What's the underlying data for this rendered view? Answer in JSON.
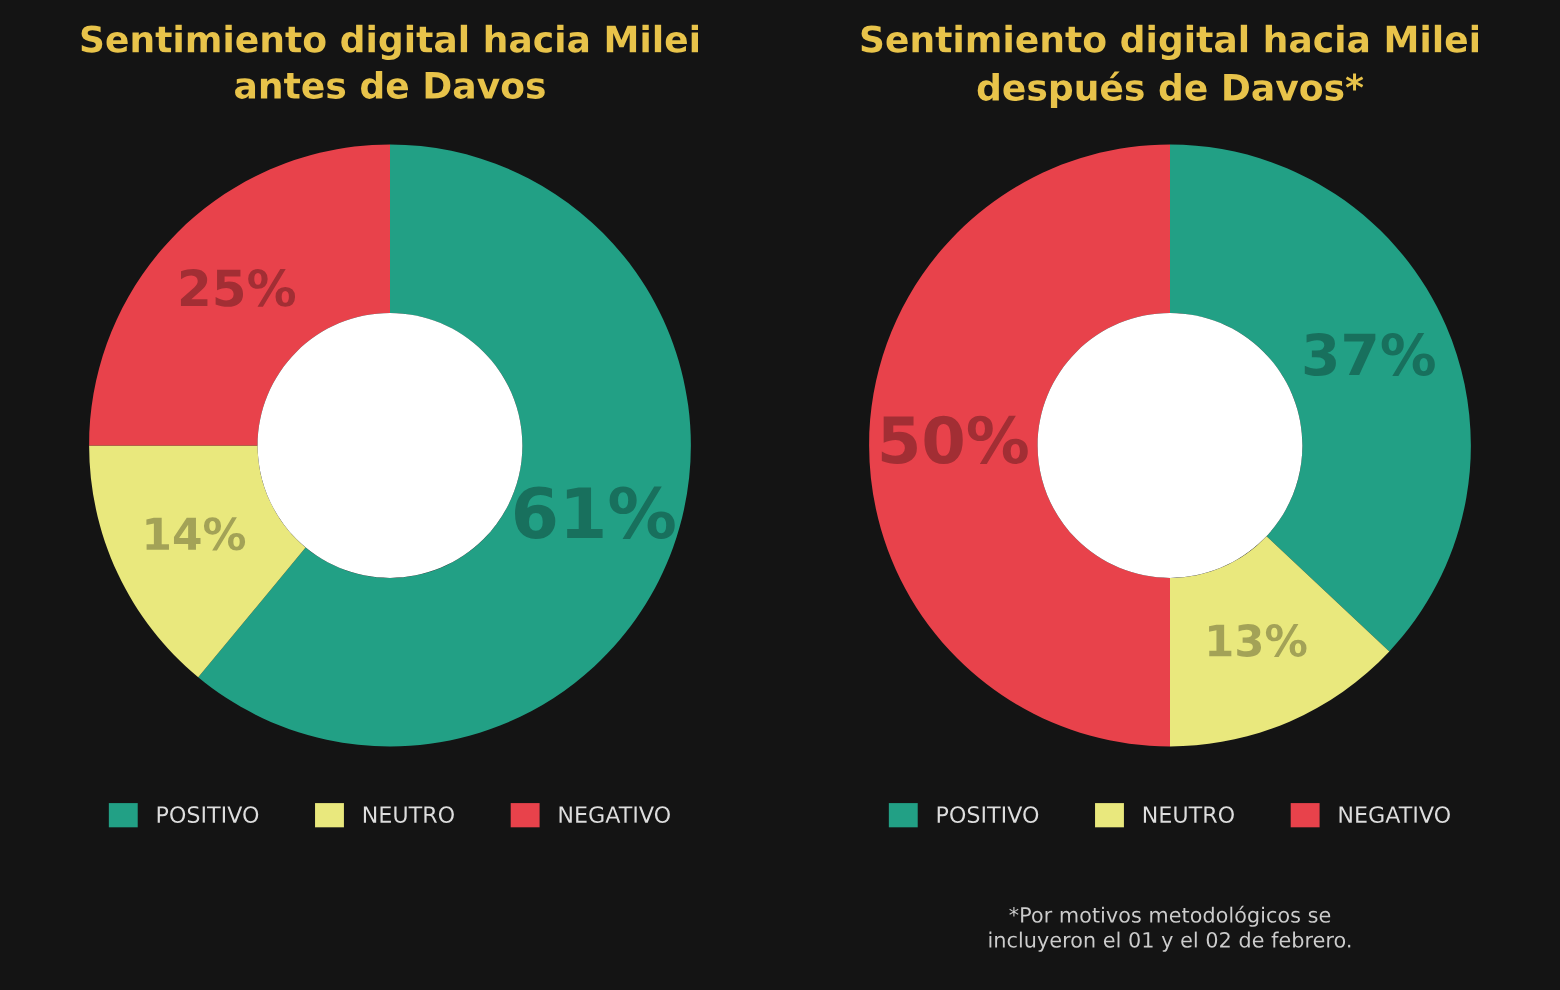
{
  "chart_data": [
    {
      "type": "donut",
      "title": "Sentimiento digital hacia Milei\nantes de Davos",
      "categories": [
        "POSITIVO",
        "NEUTRO",
        "NEGATIVO"
      ],
      "values": [
        61,
        14,
        25
      ],
      "value_labels": [
        "61%",
        "14%",
        "25%"
      ],
      "colors": [
        "#22a085",
        "#e9e87d",
        "#e8424b"
      ],
      "legend": "bottom"
    },
    {
      "type": "donut",
      "title": "Sentimiento digital hacia Milei\ndespués de Davos*",
      "categories": [
        "POSITIVO",
        "NEUTRO",
        "NEGATIVO"
      ],
      "values": [
        37,
        13,
        50
      ],
      "value_labels": [
        "37%",
        "13%",
        "50%"
      ],
      "colors": [
        "#22a085",
        "#e9e87d",
        "#e8424b"
      ],
      "legend": "bottom",
      "annotations": [
        "*Por motivos metodológicos se\nincluyeron el 01 y el 02 de febrero."
      ]
    }
  ]
}
